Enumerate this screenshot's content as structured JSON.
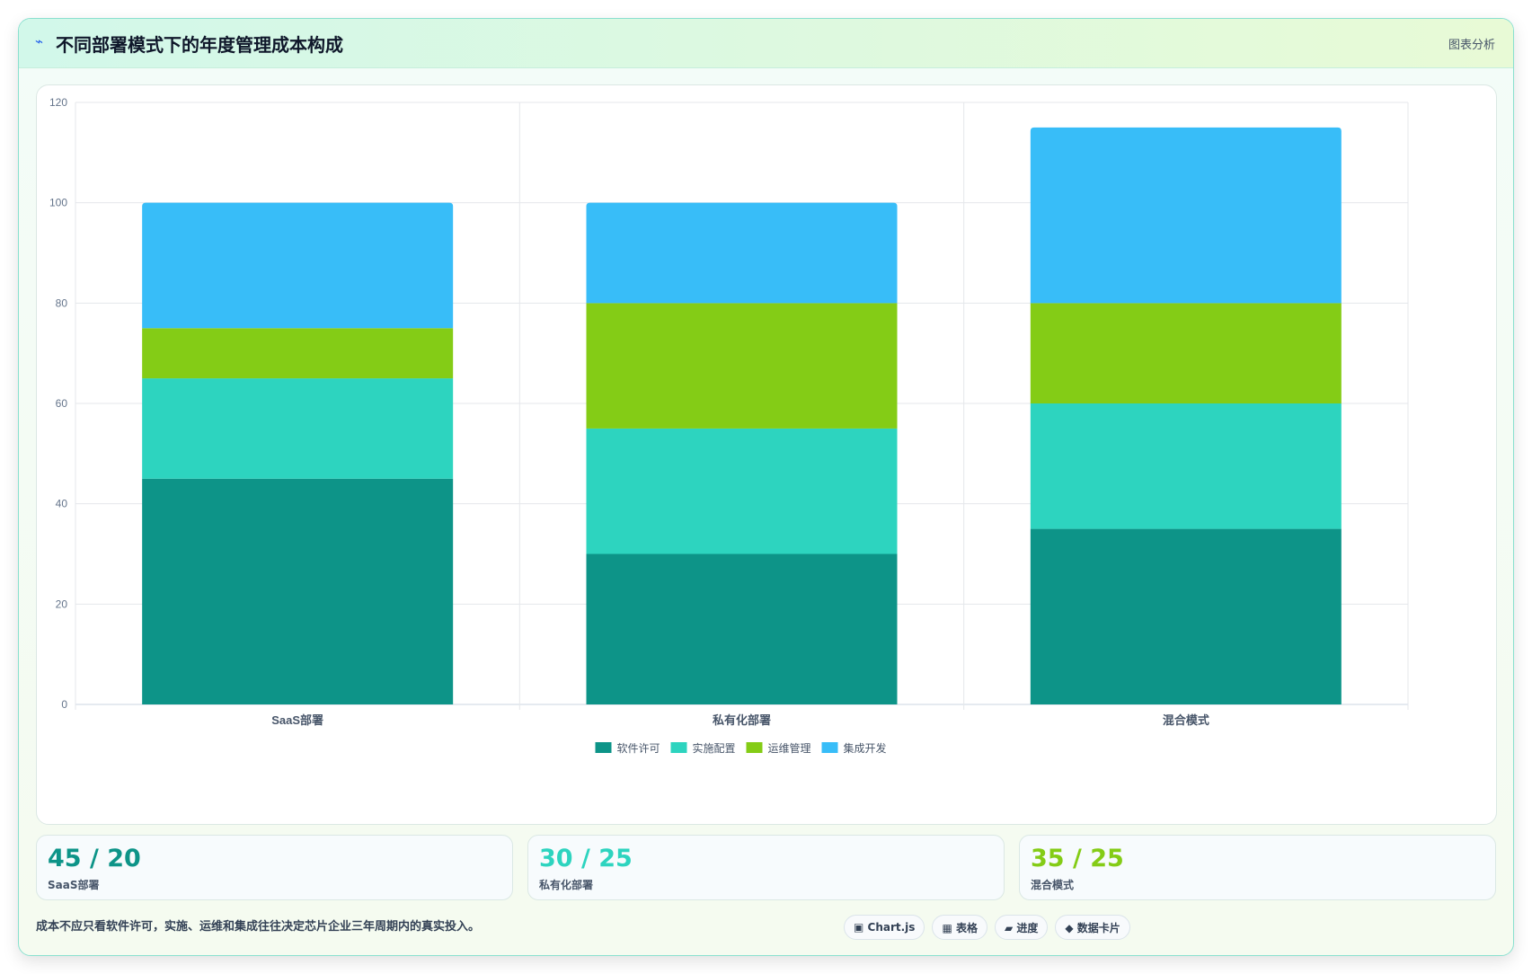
{
  "header": {
    "icon": "bolt-icon",
    "title": "不同部署模式下的年度管理成本构成",
    "tag": "图表分析"
  },
  "chart_data": {
    "type": "bar",
    "stacked": true,
    "categories": [
      "SaaS部署",
      "私有化部署",
      "混合模式"
    ],
    "series": [
      {
        "name": "软件许可",
        "color": "#0d9488",
        "values": [
          45,
          30,
          35
        ]
      },
      {
        "name": "实施配置",
        "color": "#2dd4bf",
        "values": [
          20,
          25,
          25
        ]
      },
      {
        "name": "运维管理",
        "color": "#84cc16",
        "values": [
          10,
          25,
          20
        ]
      },
      {
        "name": "集成开发",
        "color": "#38bdf8",
        "values": [
          25,
          20,
          35
        ]
      }
    ],
    "ylim": [
      0,
      120
    ],
    "yticks": [
      0,
      20,
      40,
      60,
      80,
      100,
      120
    ],
    "grid": true,
    "legend": "bottom"
  },
  "stats": [
    {
      "value": "45 / 20",
      "label": "SaaS部署",
      "color": "#0d9488"
    },
    {
      "value": "30 / 25",
      "label": "私有化部署",
      "color": "#2dd4bf"
    },
    {
      "value": "35 / 25",
      "label": "混合模式",
      "color": "#84cc16"
    }
  ],
  "note": "成本不应只看软件许可，实施、运维和集成往往决定芯片企业三年周期内的真实投入。",
  "badges": [
    {
      "icon": "chart-icon",
      "label": "▣ Chart.js"
    },
    {
      "icon": "table-icon",
      "label": "▦ 表格"
    },
    {
      "icon": "progress-icon",
      "label": "▰ 进度"
    },
    {
      "icon": "card-icon",
      "label": "◆ 数据卡片"
    }
  ]
}
